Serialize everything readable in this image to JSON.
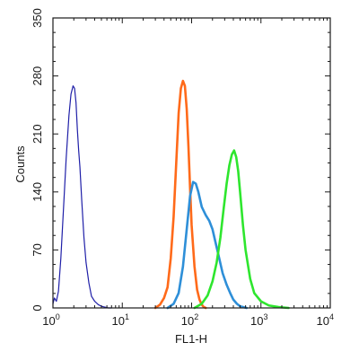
{
  "chart_data": {
    "type": "line",
    "title": "",
    "xlabel": "FL1-H",
    "ylabel": "Counts",
    "x_scale": "log",
    "xlim": [
      1,
      10000
    ],
    "ylim": [
      0,
      350
    ],
    "grid": false,
    "x_ticks": [
      {
        "base": "10",
        "exp": "0",
        "value": 1
      },
      {
        "base": "10",
        "exp": "1",
        "value": 10
      },
      {
        "base": "10",
        "exp": "2",
        "value": 100
      },
      {
        "base": "10",
        "exp": "3",
        "value": 1000
      },
      {
        "base": "10",
        "exp": "4",
        "value": 10000
      }
    ],
    "y_ticks": [
      {
        "label": "0",
        "value": 0
      },
      {
        "label": "70",
        "value": 70
      },
      {
        "label": "140",
        "value": 140
      },
      {
        "label": "210",
        "value": 210
      },
      {
        "label": "280",
        "value": 280
      },
      {
        "label": "350",
        "value": 350
      }
    ],
    "series": [
      {
        "color": "#1f1fa8",
        "stroke_width": 1.2,
        "x": [
          1.0,
          1.05,
          1.12,
          1.2,
          1.3,
          1.42,
          1.55,
          1.7,
          1.82,
          1.95,
          2.05,
          2.15,
          2.25,
          2.35,
          2.45,
          2.6,
          2.8,
          3.0,
          3.3,
          3.6,
          4.0,
          4.5,
          5.0,
          5.6,
          6.3,
          7.0
        ],
        "y": [
          5,
          12,
          8,
          20,
          60,
          120,
          180,
          232,
          258,
          268,
          265,
          248,
          215,
          190,
          170,
          130,
          85,
          55,
          30,
          14,
          8,
          4,
          2,
          1,
          0,
          0
        ]
      },
      {
        "color": "#ff6a1a",
        "stroke_width": 2.6,
        "x": [
          30,
          35,
          40,
          45,
          50,
          55,
          60,
          65,
          70,
          75,
          80,
          85,
          90,
          95,
          100,
          110,
          120,
          130,
          140,
          150,
          160
        ],
        "y": [
          0,
          4,
          12,
          25,
          60,
          110,
          175,
          235,
          265,
          274,
          268,
          240,
          195,
          145,
          100,
          50,
          22,
          10,
          4,
          1,
          0
        ]
      },
      {
        "color": "#2e8fd8",
        "stroke_width": 2.6,
        "x": [
          45,
          55,
          65,
          75,
          85,
          95,
          105,
          115,
          125,
          140,
          160,
          180,
          200,
          220,
          250,
          280,
          320,
          360,
          400,
          450,
          500,
          560,
          620
        ],
        "y": [
          0,
          5,
          18,
          50,
          95,
          135,
          152,
          150,
          140,
          122,
          112,
          105,
          95,
          80,
          60,
          42,
          28,
          18,
          10,
          5,
          2,
          1,
          0
        ]
      },
      {
        "color": "#2ee62e",
        "stroke_width": 2.6,
        "x": [
          110,
          140,
          170,
          200,
          230,
          260,
          290,
          320,
          350,
          380,
          410,
          440,
          470,
          500,
          550,
          600,
          700,
          800,
          1000,
          1300,
          1800,
          2500
        ],
        "y": [
          0,
          5,
          15,
          32,
          55,
          85,
          120,
          150,
          172,
          185,
          190,
          182,
          165,
          140,
          100,
          70,
          35,
          18,
          8,
          3,
          1,
          0
        ]
      }
    ]
  }
}
